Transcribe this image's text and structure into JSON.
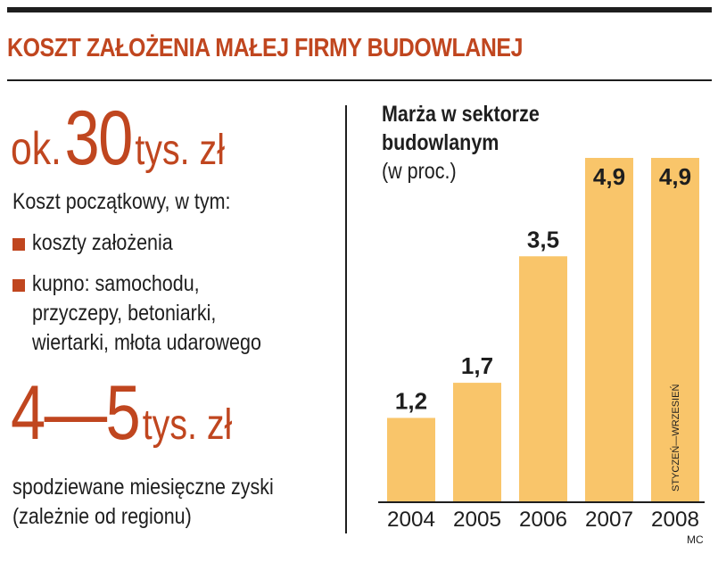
{
  "title": "KOSZT ZAŁOŻENIA MAŁEJ FIRMY BUDOWLANEJ",
  "left": {
    "cost_prefix": "ok.",
    "cost_number": "30",
    "cost_unit": "tys. zł",
    "cost_desc": "Koszt początkowy, w tym:",
    "bullets": [
      {
        "lines": [
          "koszty założenia"
        ]
      },
      {
        "lines": [
          "kupno: samochodu,",
          "przyczepy, betoniarki,",
          "wiertarki, młota udarowego"
        ]
      }
    ],
    "profit_number": "4—5",
    "profit_unit": "tys. zł",
    "profit_desc_1": "spodziewane miesięczne zyski",
    "profit_desc_2": "(zależnie od regionu)"
  },
  "colors": {
    "accent": "#c0461f",
    "bar": "#f9c56a",
    "text": "#1e1e1e"
  },
  "chart_data": {
    "type": "bar",
    "title_line_1": "Marża w sektorze",
    "title_line_2": "budowlanym",
    "subtitle": "(w proc.)",
    "categories": [
      "2004",
      "2005",
      "2006",
      "2007",
      "2008"
    ],
    "values": [
      1.2,
      1.7,
      3.5,
      4.9,
      4.9
    ],
    "value_labels": [
      "1,2",
      "1,7",
      "3,5",
      "4,9",
      "4,9"
    ],
    "annotation": "STYCZEŃ—WRZESIEŃ",
    "annotation_category": "2008",
    "ylim": [
      0,
      4.9
    ],
    "grid": false,
    "legend": "none"
  },
  "source": "MC"
}
